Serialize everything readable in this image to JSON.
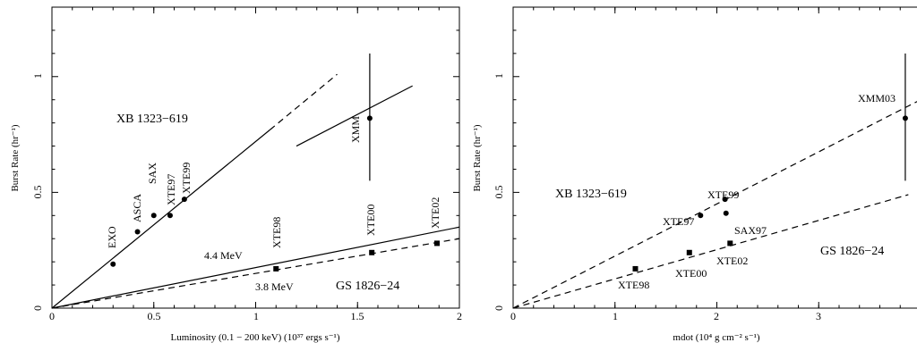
{
  "chart_data": [
    {
      "type": "scatter",
      "xlabel": "Luminosity (0.1 − 200 keV) (10³⁷ ergs s⁻¹)",
      "ylabel": "Burst Rate (hr⁻¹)",
      "xlim": [
        0,
        2
      ],
      "ylim": [
        0,
        1.3
      ],
      "x_ticks": [
        "0",
        "0.5",
        "1",
        "1.5",
        "2"
      ],
      "y_ticks": [
        "0",
        "0.5",
        "1"
      ],
      "object_labels": {
        "xb": "XB 1323−619",
        "gs": "GS 1826−24"
      },
      "energy_labels": [
        "4.4 MeV",
        "3.8 MeV"
      ],
      "series": [
        {
          "name": "XB 1323−619",
          "marker": "circle",
          "points": [
            {
              "label": "EXO",
              "x": 0.3,
              "y": 0.19
            },
            {
              "label": "ASCA",
              "x": 0.42,
              "y": 0.33
            },
            {
              "label": "SAX",
              "x": 0.5,
              "y": 0.4
            },
            {
              "label": "XTE97",
              "x": 0.58,
              "y": 0.4
            },
            {
              "label": "XTE99",
              "x": 0.65,
              "y": 0.47
            },
            {
              "label": "XMM",
              "x": 1.56,
              "y": 0.82,
              "yerr": [
                0.55,
                1.1
              ]
            }
          ]
        },
        {
          "name": "GS 1826−24",
          "marker": "square",
          "points": [
            {
              "label": "XTE98",
              "x": 1.1,
              "y": 0.17
            },
            {
              "label": "XTE00",
              "x": 1.57,
              "y": 0.24
            },
            {
              "label": "XTE02",
              "x": 1.89,
              "y": 0.28
            }
          ]
        }
      ],
      "lines": [
        {
          "style": "solid",
          "x": [
            0,
            1.07
          ],
          "y": [
            0,
            0.77
          ]
        },
        {
          "style": "dashed",
          "x": [
            1.07,
            1.4
          ],
          "y": [
            0.77,
            1.01
          ]
        },
        {
          "style": "solid",
          "x": [
            1.2,
            1.77
          ],
          "y": [
            0.7,
            0.96
          ]
        },
        {
          "style": "solid",
          "x": [
            0,
            2.0
          ],
          "y": [
            0,
            0.35
          ]
        },
        {
          "style": "dashed",
          "x": [
            0,
            2.0
          ],
          "y": [
            0,
            0.3
          ]
        }
      ]
    },
    {
      "type": "scatter",
      "xlabel": "mdot (10⁴ g cm⁻² s⁻¹)",
      "ylabel": "Burst Rate (hr⁻¹)",
      "xlim": [
        0,
        4
      ],
      "ylim": [
        0,
        1.3
      ],
      "x_ticks": [
        "0",
        "1",
        "2",
        "3"
      ],
      "y_ticks": [
        "0",
        "0.5",
        "1"
      ],
      "object_labels": {
        "xb": "XB 1323−619",
        "gs": "GS 1826−24"
      },
      "series": [
        {
          "name": "XB 1323−619",
          "marker": "circle",
          "points": [
            {
              "label": "XTE97",
              "x": 1.84,
              "y": 0.4
            },
            {
              "label": "XTE99",
              "x": 2.08,
              "y": 0.47
            },
            {
              "label": "SAX97",
              "x": 2.09,
              "y": 0.41
            },
            {
              "label": "XMM03",
              "x": 3.85,
              "y": 0.82,
              "yerr": [
                0.55,
                1.1
              ]
            }
          ]
        },
        {
          "name": "GS 1826−24",
          "marker": "square",
          "points": [
            {
              "label": "XTE98",
              "x": 1.2,
              "y": 0.17
            },
            {
              "label": "XTE00",
              "x": 1.73,
              "y": 0.24
            },
            {
              "label": "XTE02",
              "x": 2.13,
              "y": 0.28
            }
          ]
        }
      ],
      "lines": [
        {
          "style": "dashed",
          "x": [
            0,
            4.0
          ],
          "y": [
            0,
            0.9
          ]
        },
        {
          "style": "dashed",
          "x": [
            0,
            3.88
          ],
          "y": [
            0,
            0.49
          ]
        }
      ]
    }
  ]
}
